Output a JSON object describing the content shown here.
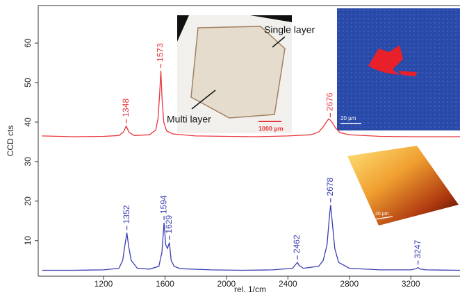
{
  "chart_data": {
    "type": "line",
    "x_label": "rel. 1/cm",
    "y_label": "CCD cts",
    "xlim": [
      775,
      3520
    ],
    "ylim": [
      1,
      69.5
    ],
    "xticks": [
      1200,
      1600,
      2000,
      2400,
      2800,
      3200
    ],
    "yticks": [
      10,
      20,
      30,
      40,
      50,
      60
    ],
    "series": [
      {
        "name": "Single layer",
        "color": "#e8363c",
        "x": [
          800,
          1000,
          1200,
          1300,
          1330,
          1348,
          1366,
          1400,
          1500,
          1540,
          1555,
          1565,
          1573,
          1581,
          1592,
          1610,
          1650,
          1800,
          2000,
          2200,
          2400,
          2550,
          2600,
          2630,
          2650,
          2665,
          2676,
          2690,
          2710,
          2740,
          2800,
          3000,
          3200,
          3400,
          3520
        ],
        "values": [
          36.5,
          36.3,
          36.4,
          36.6,
          37.5,
          39.0,
          37.4,
          36.6,
          36.8,
          38,
          41,
          47,
          53,
          46,
          40,
          37.8,
          37,
          36.5,
          36.4,
          36.3,
          36.5,
          36.8,
          37.5,
          38.8,
          40,
          40.8,
          40.5,
          39.8,
          38.5,
          37.3,
          36.8,
          36.4,
          36.3,
          36.3,
          36.3
        ],
        "peaks": [
          1348,
          1573,
          2676
        ]
      },
      {
        "name": "Multi layer",
        "color": "#3a3fb0",
        "x": [
          800,
          1000,
          1200,
          1300,
          1325,
          1340,
          1352,
          1364,
          1380,
          1420,
          1500,
          1560,
          1580,
          1594,
          1605,
          1616,
          1629,
          1640,
          1660,
          1700,
          1900,
          2100,
          2300,
          2430,
          2452,
          2462,
          2472,
          2500,
          2600,
          2630,
          2655,
          2670,
          2678,
          2688,
          2705,
          2730,
          2800,
          3000,
          3200,
          3235,
          3247,
          3260,
          3300,
          3520
        ],
        "values": [
          2.5,
          2.5,
          2.6,
          3,
          5,
          9,
          12,
          8.5,
          5,
          3,
          2.8,
          3.5,
          7,
          14.5,
          9,
          8,
          9.5,
          5,
          3.5,
          2.9,
          2.6,
          2.5,
          2.6,
          3,
          4,
          4.5,
          3.8,
          3,
          3.5,
          5,
          9,
          16,
          19,
          15,
          8,
          4.5,
          3,
          2.6,
          2.6,
          2.9,
          3.2,
          2.8,
          2.6,
          2.5
        ],
        "peaks": [
          1352,
          1594,
          1629,
          2462,
          2678,
          3247
        ]
      }
    ],
    "annotations": [
      "Single layer",
      "Multi layer",
      "1000 µm",
      "20 µm",
      "20 µm"
    ]
  }
}
